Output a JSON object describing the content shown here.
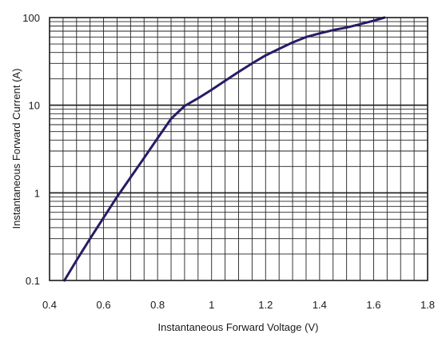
{
  "chart_data": {
    "type": "line",
    "title": "",
    "xlabel": "Instantaneous Forward Voltage (V)",
    "ylabel": "Instantaneous Forward Current (A)",
    "xlim": [
      0.4,
      1.8
    ],
    "ylim": [
      0.1,
      100
    ],
    "yscale": "log",
    "grid": true,
    "legend": "none",
    "x_ticks": [
      "0.4",
      "0.6",
      "0.8",
      "1",
      "1.2",
      "1.4",
      "1.6",
      "1.8"
    ],
    "y_ticks": [
      "0.1",
      "1",
      "10",
      "100"
    ],
    "series": [
      {
        "x": [
          0.455,
          0.5,
          0.55,
          0.6,
          0.65,
          0.7,
          0.75,
          0.8,
          0.85,
          0.9,
          0.95,
          1.0,
          1.05,
          1.1,
          1.15,
          1.2,
          1.25,
          1.3,
          1.35,
          1.4,
          1.45,
          1.5,
          1.55,
          1.6,
          1.64
        ],
        "y": [
          0.1,
          0.17,
          0.3,
          0.52,
          0.9,
          1.5,
          2.5,
          4.2,
          7.0,
          9.8,
          12.0,
          15.0,
          19.0,
          24.0,
          30.0,
          37.0,
          44.0,
          52.0,
          60.0,
          66.0,
          72.0,
          77.0,
          84.0,
          92.0,
          100.0
        ],
        "color": "#2a1a66"
      }
    ],
    "colors": {
      "grid": "#222222",
      "frame": "#1a1a1a",
      "curve": "#2a1a66"
    }
  }
}
